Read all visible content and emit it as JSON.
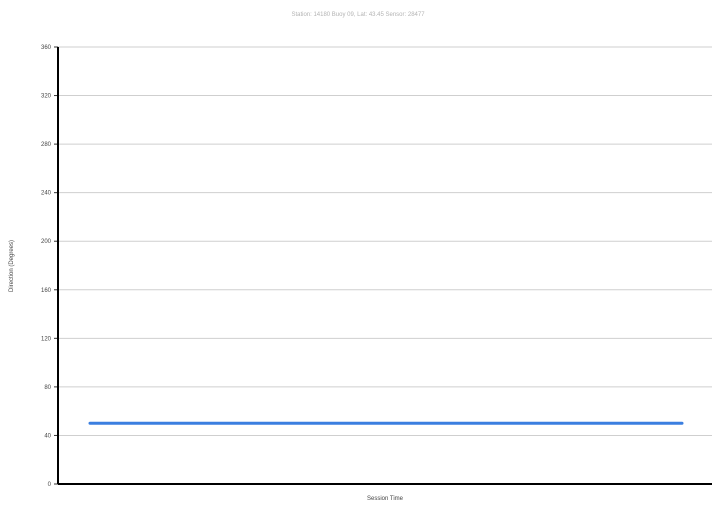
{
  "chart_data": {
    "type": "line",
    "title": "Station: 14180 Buoy 09, Lat: 43.45 Sensor: 28477",
    "xlabel": "Session Time",
    "ylabel": "Direction (Degrees)",
    "ylim": [
      0,
      360
    ],
    "yticks": [
      0,
      40,
      80,
      120,
      160,
      200,
      240,
      280,
      320,
      360
    ],
    "grid": true,
    "colors": {
      "series": "#3b7fe0"
    },
    "series": [
      {
        "values": [
          50,
          50
        ]
      }
    ]
  }
}
